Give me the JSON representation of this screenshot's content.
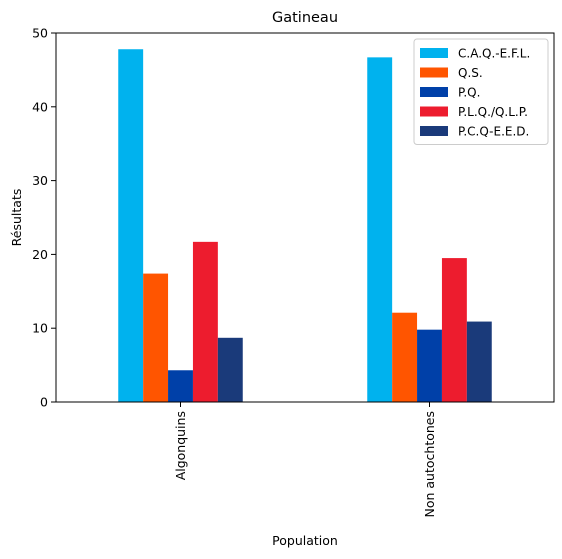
{
  "chart_data": {
    "type": "bar",
    "title": "Gatineau",
    "xlabel": "Population",
    "ylabel": "Résultats",
    "categories": [
      "Algonquins",
      "Non autochtones"
    ],
    "ylim": [
      0,
      50
    ],
    "yticks": [
      0,
      10,
      20,
      30,
      40,
      50
    ],
    "grid": false,
    "legend": "top-right",
    "series": [
      {
        "name": "C.A.Q.-E.F.L.",
        "color": "#00b2ee",
        "values": [
          47.8,
          46.7
        ]
      },
      {
        "name": "Q.S.",
        "color": "#ff5500",
        "values": [
          17.4,
          12.1
        ]
      },
      {
        "name": "P.Q.",
        "color": "#0040a8",
        "values": [
          4.3,
          9.8
        ]
      },
      {
        "name": "P.L.Q./Q.L.P.",
        "color": "#ed1c2e",
        "values": [
          21.7,
          19.5
        ]
      },
      {
        "name": "P.C.Q-E.E.D.",
        "color": "#1a3a7a",
        "values": [
          8.7,
          10.9
        ]
      }
    ]
  }
}
